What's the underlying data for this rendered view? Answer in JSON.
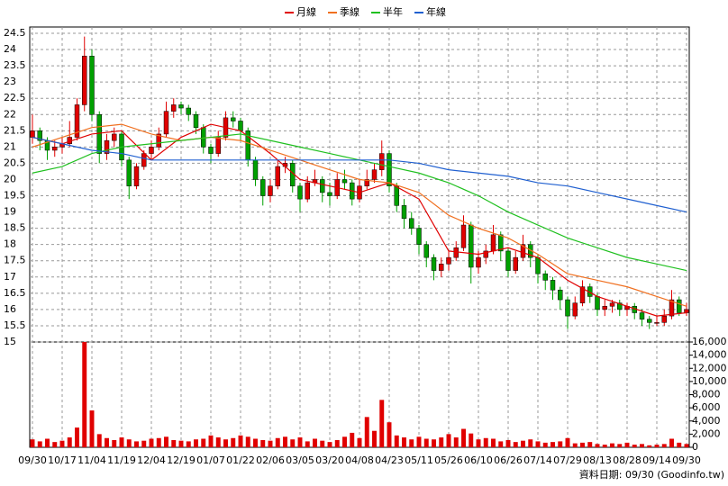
{
  "chart_data": {
    "type": "candlestick",
    "footer": "資料日期: 09/30 (Goodinfo.tw)",
    "up_color": "#e00000",
    "down_color": "#00a000",
    "xlim": [
      0,
      88
    ],
    "xticks": [
      {
        "value": 0,
        "label": "09/30"
      },
      {
        "value": 4,
        "label": "10/17"
      },
      {
        "value": 8,
        "label": "11/04"
      },
      {
        "value": 12,
        "label": "11/19"
      },
      {
        "value": 16,
        "label": "12/04"
      },
      {
        "value": 20,
        "label": "12/19"
      },
      {
        "value": 24,
        "label": "01/07"
      },
      {
        "value": 28,
        "label": "01/22"
      },
      {
        "value": 32,
        "label": "02/06"
      },
      {
        "value": 36,
        "label": "03/05"
      },
      {
        "value": 40,
        "label": "03/20"
      },
      {
        "value": 44,
        "label": "04/08"
      },
      {
        "value": 48,
        "label": "04/23"
      },
      {
        "value": 52,
        "label": "05/11"
      },
      {
        "value": 56,
        "label": "05/26"
      },
      {
        "value": 60,
        "label": "06/10"
      },
      {
        "value": 64,
        "label": "06/26"
      },
      {
        "value": 68,
        "label": "07/14"
      },
      {
        "value": 72,
        "label": "07/29"
      },
      {
        "value": 76,
        "label": "08/13"
      },
      {
        "value": 80,
        "label": "08/28"
      },
      {
        "value": 84,
        "label": "09/14"
      },
      {
        "value": 88,
        "label": "09/30"
      }
    ],
    "ylim": [
      15,
      24.5
    ],
    "yticks": [
      15,
      15.5,
      16,
      16.5,
      17,
      17.5,
      18,
      18.5,
      19,
      19.5,
      20,
      20.5,
      21,
      21.5,
      22,
      22.5,
      23,
      23.5,
      24,
      24.5
    ],
    "y2lim": [
      0,
      16000
    ],
    "y2ticks": [
      {
        "value": 0,
        "label": "0"
      },
      {
        "value": 2000,
        "label": "2,000"
      },
      {
        "value": 4000,
        "label": "4,000"
      },
      {
        "value": 6000,
        "label": "6,000"
      },
      {
        "value": 8000,
        "label": "8,000"
      },
      {
        "value": 10000,
        "label": "10,000"
      },
      {
        "value": 12000,
        "label": "12,000"
      },
      {
        "value": 14000,
        "label": "14,000"
      },
      {
        "value": 16000,
        "label": "16,000"
      }
    ],
    "grid": true,
    "open": [
      21.3,
      21.5,
      21.2,
      20.9,
      21.0,
      21.1,
      21.3,
      22.3,
      23.8,
      22.0,
      20.8,
      21.2,
      21.4,
      20.6,
      19.8,
      20.4,
      20.8,
      21.0,
      21.4,
      22.1,
      22.3,
      22.2,
      22.0,
      21.6,
      21.0,
      20.8,
      21.3,
      21.9,
      21.8,
      21.5,
      20.6,
      20.0,
      19.5,
      19.8,
      20.4,
      20.5,
      19.8,
      19.4,
      19.9,
      20.0,
      19.6,
      19.5,
      20.0,
      19.9,
      19.4,
      19.8,
      20.0,
      20.3,
      20.8,
      19.8,
      19.2,
      18.8,
      18.5,
      18.0,
      17.6,
      17.2,
      17.4,
      17.6,
      17.9,
      18.6,
      17.3,
      17.6,
      17.8,
      18.3,
      17.8,
      17.2,
      17.6,
      18.0,
      17.6,
      17.1,
      16.9,
      16.6,
      16.3,
      15.8,
      16.2,
      16.7,
      16.4,
      16.0,
      16.1,
      16.2,
      16.0,
      16.1,
      15.9,
      15.7,
      15.6,
      15.6,
      15.8,
      16.3,
      15.9
    ],
    "high": [
      22.0,
      21.6,
      21.3,
      21.2,
      21.3,
      21.8,
      22.5,
      24.4,
      24.0,
      22.1,
      21.4,
      21.6,
      21.5,
      20.7,
      20.5,
      20.9,
      21.2,
      21.6,
      22.4,
      22.5,
      22.4,
      22.3,
      22.1,
      21.7,
      21.1,
      21.5,
      22.1,
      22.1,
      21.9,
      21.6,
      20.7,
      20.1,
      20.0,
      20.6,
      20.7,
      20.6,
      19.9,
      20.1,
      20.3,
      20.1,
      19.9,
      20.2,
      20.3,
      20.0,
      20.0,
      20.3,
      20.5,
      21.2,
      20.9,
      19.9,
      19.4,
      19.0,
      18.6,
      18.1,
      17.7,
      17.6,
      17.8,
      18.1,
      18.9,
      18.7,
      17.8,
      18.0,
      18.6,
      18.4,
      17.9,
      17.8,
      18.3,
      18.1,
      17.7,
      17.2,
      17.0,
      16.7,
      16.4,
      16.4,
      16.9,
      16.8,
      16.5,
      16.3,
      16.3,
      16.3,
      16.2,
      16.2,
      16.0,
      15.8,
      15.8,
      16.0,
      16.6,
      16.4,
      16.2
    ],
    "low": [
      21.1,
      20.9,
      20.6,
      20.7,
      20.8,
      21.0,
      21.2,
      22.1,
      21.8,
      20.5,
      20.6,
      21.0,
      20.4,
      19.4,
      19.7,
      20.3,
      20.6,
      20.9,
      21.3,
      21.9,
      22.0,
      21.8,
      21.4,
      20.8,
      20.5,
      20.7,
      21.2,
      21.6,
      21.2,
      20.4,
      19.8,
      19.2,
      19.3,
      19.7,
      20.2,
      19.6,
      19.0,
      19.3,
      19.8,
      19.3,
      19.2,
      19.4,
      19.7,
      19.2,
      19.3,
      19.7,
      19.9,
      20.1,
      19.6,
      19.0,
      18.5,
      18.3,
      17.7,
      17.3,
      16.9,
      17.0,
      17.2,
      17.5,
      17.8,
      16.8,
      17.1,
      17.4,
      17.7,
      17.5,
      17.0,
      17.1,
      17.5,
      17.3,
      16.8,
      16.6,
      16.3,
      16.0,
      15.4,
      15.7,
      16.1,
      16.2,
      15.8,
      15.8,
      15.9,
      15.8,
      15.8,
      15.7,
      15.5,
      15.4,
      15.5,
      15.5,
      15.7,
      15.8,
      15.8
    ],
    "close": [
      21.5,
      21.2,
      20.9,
      21.0,
      21.1,
      21.3,
      22.3,
      23.8,
      22.0,
      20.8,
      21.2,
      21.4,
      20.6,
      19.8,
      20.4,
      20.8,
      21.0,
      21.4,
      22.1,
      22.3,
      22.2,
      22.0,
      21.6,
      21.0,
      20.8,
      21.3,
      21.9,
      21.8,
      21.5,
      20.6,
      20.0,
      19.5,
      19.8,
      20.4,
      20.5,
      19.8,
      19.4,
      19.9,
      20.0,
      19.6,
      19.5,
      20.0,
      19.9,
      19.4,
      19.8,
      20.0,
      20.3,
      20.8,
      19.8,
      19.2,
      18.8,
      18.5,
      18.0,
      17.6,
      17.2,
      17.4,
      17.6,
      17.9,
      18.6,
      17.3,
      17.6,
      17.8,
      18.3,
      17.8,
      17.2,
      17.6,
      18.0,
      17.6,
      17.1,
      16.9,
      16.6,
      16.3,
      15.8,
      16.2,
      16.7,
      16.4,
      16.0,
      16.1,
      16.2,
      16.0,
      16.1,
      15.9,
      15.7,
      15.6,
      15.6,
      15.8,
      16.3,
      15.9,
      16.0
    ],
    "volume": {
      "color": "#e00000",
      "values": [
        1200,
        900,
        1300,
        800,
        1000,
        1500,
        3000,
        16000,
        5600,
        2000,
        1400,
        1100,
        1500,
        1200,
        900,
        1000,
        1300,
        1400,
        1600,
        1100,
        1000,
        900,
        1200,
        1300,
        1800,
        1500,
        1200,
        1400,
        1800,
        1600,
        1300,
        1100,
        1000,
        1400,
        1600,
        1200,
        1500,
        900,
        1300,
        1000,
        800,
        1100,
        1600,
        2200,
        1400,
        4600,
        2500,
        7200,
        3800,
        1800,
        1500,
        1200,
        1600,
        1300,
        1200,
        1500,
        2000,
        1500,
        2800,
        2100,
        1200,
        1400,
        1300,
        900,
        1100,
        800,
        1000,
        1200,
        900,
        700,
        800,
        900,
        1400,
        600,
        700,
        800,
        500,
        400,
        600,
        500,
        700,
        400,
        500,
        300,
        400,
        500,
        1300,
        700,
        500
      ]
    },
    "series": [
      {
        "name": "月線",
        "color": "#e00000",
        "x": [
          0,
          4,
          8,
          12,
          16,
          20,
          24,
          28,
          32,
          36,
          40,
          44,
          48,
          52,
          56,
          60,
          64,
          68,
          72,
          76,
          80,
          84,
          88
        ],
        "values": [
          21.3,
          21.1,
          21.4,
          21.5,
          20.6,
          21.3,
          21.7,
          21.5,
          20.8,
          20.0,
          19.8,
          19.6,
          19.9,
          19.4,
          17.8,
          17.7,
          17.9,
          17.6,
          16.9,
          16.4,
          16.1,
          15.8,
          15.9
        ]
      },
      {
        "name": "季線",
        "color": "#f07020",
        "x": [
          0,
          4,
          8,
          12,
          16,
          20,
          24,
          28,
          32,
          36,
          40,
          44,
          48,
          52,
          56,
          60,
          64,
          68,
          72,
          76,
          80,
          84,
          88
        ],
        "values": [
          21.0,
          21.3,
          21.6,
          21.7,
          21.4,
          21.2,
          21.3,
          21.2,
          20.9,
          20.6,
          20.3,
          20.0,
          19.9,
          19.6,
          18.9,
          18.5,
          18.2,
          17.7,
          17.1,
          16.9,
          16.7,
          16.4,
          16.1
        ]
      },
      {
        "name": "半年",
        "color": "#20c020",
        "x": [
          0,
          4,
          8,
          12,
          16,
          20,
          24,
          28,
          32,
          36,
          40,
          44,
          48,
          52,
          56,
          60,
          64,
          68,
          72,
          76,
          80,
          84,
          88
        ],
        "values": [
          20.2,
          20.4,
          20.8,
          21.0,
          21.1,
          21.2,
          21.3,
          21.4,
          21.2,
          21.0,
          20.8,
          20.6,
          20.4,
          20.2,
          19.9,
          19.5,
          19.0,
          18.6,
          18.2,
          17.9,
          17.6,
          17.4,
          17.2
        ]
      },
      {
        "name": "年線",
        "color": "#2060d0",
        "x": [
          0,
          4,
          8,
          12,
          16,
          20,
          24,
          28,
          32,
          36,
          40,
          44,
          48,
          52,
          56,
          60,
          64,
          68,
          72,
          76,
          80,
          84,
          88
        ],
        "values": [
          21.3,
          21.1,
          20.9,
          20.8,
          20.6,
          20.6,
          20.6,
          20.6,
          20.6,
          20.6,
          20.6,
          20.6,
          20.6,
          20.5,
          20.3,
          20.2,
          20.1,
          19.9,
          19.8,
          19.6,
          19.4,
          19.2,
          19.0
        ]
      }
    ]
  }
}
